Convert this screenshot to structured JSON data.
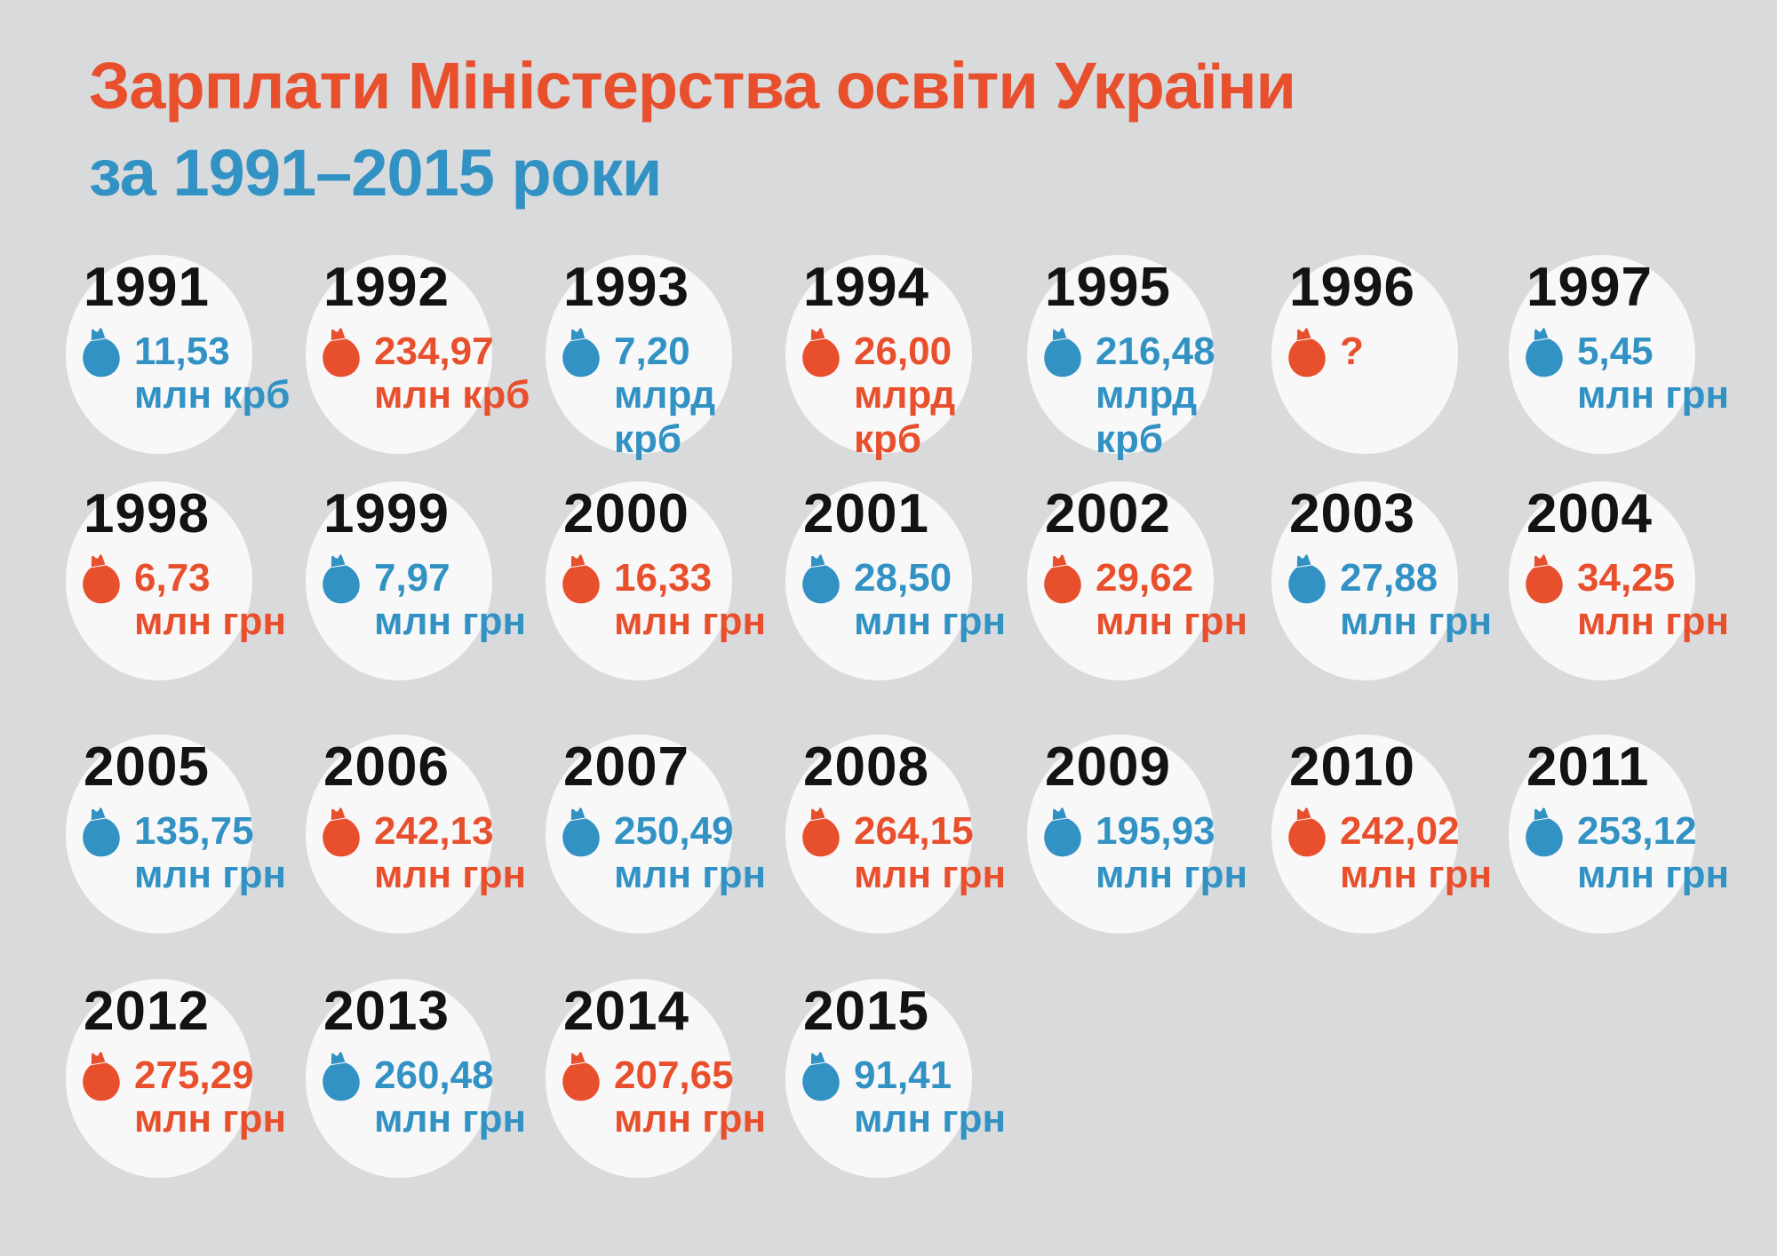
{
  "title": {
    "line1": "Зарплати Міністерства освіти України",
    "line2": "за 1991–2015 роки"
  },
  "colors": {
    "red": "#e8502d",
    "blue": "#3292c4",
    "background": "#d9dadc",
    "year_text": "#131313",
    "circle": "#f8f8f9"
  },
  "icon": "money-bag-icon",
  "cards": [
    {
      "year": "1991",
      "value": "11,53",
      "unit_lines": [
        "млн крб"
      ],
      "color": "blue"
    },
    {
      "year": "1992",
      "value": "234,97",
      "unit_lines": [
        "млн крб"
      ],
      "color": "red"
    },
    {
      "year": "1993",
      "value": "7,20",
      "unit_lines": [
        "млрд",
        "крб"
      ],
      "color": "blue"
    },
    {
      "year": "1994",
      "value": "26,00",
      "unit_lines": [
        "млрд",
        "крб"
      ],
      "color": "red"
    },
    {
      "year": "1995",
      "value": "216,48",
      "unit_lines": [
        "млрд",
        "крб"
      ],
      "color": "blue"
    },
    {
      "year": "1996",
      "value": "?",
      "unit_lines": [],
      "color": "red"
    },
    {
      "year": "1997",
      "value": "5,45",
      "unit_lines": [
        "млн грн"
      ],
      "color": "blue"
    },
    {
      "year": "1998",
      "value": "6,73",
      "unit_lines": [
        "млн грн"
      ],
      "color": "red"
    },
    {
      "year": "1999",
      "value": "7,97",
      "unit_lines": [
        "млн грн"
      ],
      "color": "blue"
    },
    {
      "year": "2000",
      "value": "16,33",
      "unit_lines": [
        "млн грн"
      ],
      "color": "red"
    },
    {
      "year": "2001",
      "value": "28,50",
      "unit_lines": [
        "млн грн"
      ],
      "color": "blue"
    },
    {
      "year": "2002",
      "value": "29,62",
      "unit_lines": [
        "млн грн"
      ],
      "color": "red"
    },
    {
      "year": "2003",
      "value": "27,88",
      "unit_lines": [
        "млн грн"
      ],
      "color": "blue"
    },
    {
      "year": "2004",
      "value": "34,25",
      "unit_lines": [
        "млн грн"
      ],
      "color": "red"
    },
    {
      "year": "2005",
      "value": "135,75",
      "unit_lines": [
        "млн грн"
      ],
      "color": "blue"
    },
    {
      "year": "2006",
      "value": "242,13",
      "unit_lines": [
        "млн грн"
      ],
      "color": "red"
    },
    {
      "year": "2007",
      "value": "250,49",
      "unit_lines": [
        "млн грн"
      ],
      "color": "blue"
    },
    {
      "year": "2008",
      "value": "264,15",
      "unit_lines": [
        "млн грн"
      ],
      "color": "red"
    },
    {
      "year": "2009",
      "value": "195,93",
      "unit_lines": [
        "млн грн"
      ],
      "color": "blue"
    },
    {
      "year": "2010",
      "value": "242,02",
      "unit_lines": [
        "млн грн"
      ],
      "color": "red"
    },
    {
      "year": "2011",
      "value": "253,12",
      "unit_lines": [
        "млн грн"
      ],
      "color": "blue"
    },
    {
      "year": "2012",
      "value": "275,29",
      "unit_lines": [
        "млн грн"
      ],
      "color": "red"
    },
    {
      "year": "2013",
      "value": "260,48",
      "unit_lines": [
        "млн грн"
      ],
      "color": "blue"
    },
    {
      "year": "2014",
      "value": "207,65",
      "unit_lines": [
        "млн грн"
      ],
      "color": "red"
    },
    {
      "year": "2015",
      "value": "91,41",
      "unit_lines": [
        "млн грн"
      ],
      "color": "blue"
    }
  ],
  "chart_data": {
    "type": "table",
    "title": "Зарплати Міністерства освіти України за 1991–2015 роки",
    "categories": [
      "1991",
      "1992",
      "1993",
      "1994",
      "1995",
      "1996",
      "1997",
      "1998",
      "1999",
      "2000",
      "2001",
      "2002",
      "2003",
      "2004",
      "2005",
      "2006",
      "2007",
      "2008",
      "2009",
      "2010",
      "2011",
      "2012",
      "2013",
      "2014",
      "2015"
    ],
    "values": [
      11.53,
      234.97,
      7.2,
      26.0,
      216.48,
      null,
      5.45,
      6.73,
      7.97,
      16.33,
      28.5,
      29.62,
      27.88,
      34.25,
      135.75,
      242.13,
      250.49,
      264.15,
      195.93,
      242.02,
      253.12,
      275.29,
      260.48,
      207.65,
      91.41
    ],
    "units": [
      "млн крб",
      "млн крб",
      "млрд крб",
      "млрд крб",
      "млрд крб",
      "?",
      "млн грн",
      "млн грн",
      "млн грн",
      "млн грн",
      "млн грн",
      "млн грн",
      "млн грн",
      "млн грн",
      "млн грн",
      "млн грн",
      "млн грн",
      "млн грн",
      "млн грн",
      "млн грн",
      "млн грн",
      "млн грн",
      "млн грн",
      "млн грн",
      "млн грн"
    ],
    "legend_position": "none",
    "grid": false
  }
}
